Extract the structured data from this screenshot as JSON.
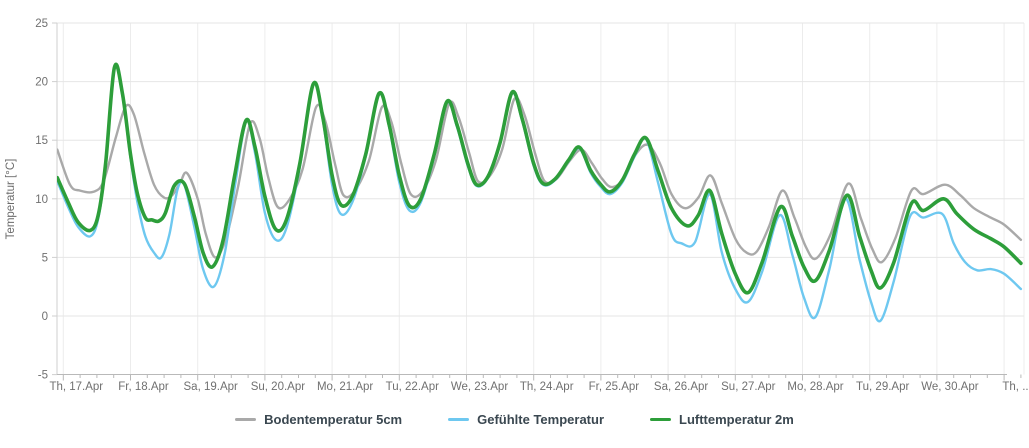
{
  "chart_data": {
    "type": "line",
    "title": "",
    "xlabel": "",
    "ylabel": "Temperatur [°C]",
    "ylim": [
      -5,
      25
    ],
    "y_ticks": [
      25,
      20,
      15,
      10,
      5,
      0,
      -5
    ],
    "x_tick_labels": [
      "Th, 17.Apr",
      "Fr, 18.Apr",
      "Sa, 19.Apr",
      "Su, 20.Apr",
      "Mo, 21.Apr",
      "Tu, 22.Apr",
      "We, 23.Apr",
      "Th, 24.Apr",
      "Fr, 25.Apr",
      "Sa, 26.Apr",
      "Su, 27.Apr",
      "Mo, 28.Apr",
      "Tu, 29.Apr",
      "We, 30.Apr",
      "Th, ..."
    ],
    "x_unit": "days since 17.Apr 00:00",
    "x_minor_ticks_per_day": 3,
    "grid": true,
    "legend_position": "bottom",
    "series": [
      {
        "name": "Bodentemperatur 5cm",
        "id": "bodentemperatur-5cm",
        "color": "#a9a9a9",
        "width": 2.4,
        "points": [
          [
            -0.09,
            14.2
          ],
          [
            0.1,
            11.2
          ],
          [
            0.25,
            10.7
          ],
          [
            0.45,
            10.6
          ],
          [
            0.6,
            11.5
          ],
          [
            0.78,
            15.2
          ],
          [
            0.93,
            17.9
          ],
          [
            1.05,
            17.2
          ],
          [
            1.2,
            14.0
          ],
          [
            1.35,
            11.2
          ],
          [
            1.5,
            10.1
          ],
          [
            1.62,
            10.3
          ],
          [
            1.74,
            11.4
          ],
          [
            1.84,
            12.2
          ],
          [
            2.0,
            10.0
          ],
          [
            2.12,
            7.0
          ],
          [
            2.26,
            5.0
          ],
          [
            2.42,
            6.6
          ],
          [
            2.6,
            11.0
          ],
          [
            2.78,
            16.4
          ],
          [
            2.92,
            15.2
          ],
          [
            3.05,
            11.8
          ],
          [
            3.19,
            9.3
          ],
          [
            3.36,
            9.9
          ],
          [
            3.56,
            12.5
          ],
          [
            3.76,
            17.8
          ],
          [
            3.9,
            16.6
          ],
          [
            4.05,
            12.8
          ],
          [
            4.17,
            10.3
          ],
          [
            4.34,
            10.7
          ],
          [
            4.55,
            13.3
          ],
          [
            4.74,
            17.8
          ],
          [
            4.88,
            16.6
          ],
          [
            5.03,
            13.0
          ],
          [
            5.17,
            10.4
          ],
          [
            5.34,
            10.6
          ],
          [
            5.54,
            13.2
          ],
          [
            5.74,
            18.1
          ],
          [
            5.88,
            17.0
          ],
          [
            6.04,
            13.9
          ],
          [
            6.17,
            11.5
          ],
          [
            6.34,
            11.9
          ],
          [
            6.53,
            14.2
          ],
          [
            6.71,
            18.5
          ],
          [
            6.86,
            17.2
          ],
          [
            7.02,
            13.9
          ],
          [
            7.16,
            11.5
          ],
          [
            7.34,
            11.7
          ],
          [
            7.53,
            13.2
          ],
          [
            7.71,
            14.2
          ],
          [
            7.87,
            13.0
          ],
          [
            8.02,
            11.7
          ],
          [
            8.16,
            11.0
          ],
          [
            8.34,
            11.7
          ],
          [
            8.52,
            13.8
          ],
          [
            8.7,
            14.6
          ],
          [
            8.88,
            13.0
          ],
          [
            9.05,
            10.4
          ],
          [
            9.25,
            9.2
          ],
          [
            9.45,
            10.1
          ],
          [
            9.63,
            12.0
          ],
          [
            9.8,
            9.6
          ],
          [
            10.0,
            6.6
          ],
          [
            10.17,
            5.4
          ],
          [
            10.32,
            5.5
          ],
          [
            10.5,
            7.6
          ],
          [
            10.7,
            10.7
          ],
          [
            10.88,
            8.4
          ],
          [
            11.05,
            5.9
          ],
          [
            11.2,
            4.9
          ],
          [
            11.42,
            7.0
          ],
          [
            11.68,
            11.3
          ],
          [
            11.87,
            8.3
          ],
          [
            12.04,
            5.7
          ],
          [
            12.18,
            4.6
          ],
          [
            12.38,
            6.6
          ],
          [
            12.62,
            10.7
          ],
          [
            12.8,
            10.4
          ],
          [
            13.12,
            11.2
          ],
          [
            13.35,
            10.3
          ],
          [
            13.55,
            9.2
          ],
          [
            13.8,
            8.4
          ],
          [
            14.0,
            7.8
          ],
          [
            14.25,
            6.5
          ]
        ]
      },
      {
        "name": "Gefühlte Temperatur",
        "id": "gefuehlte-temperatur",
        "color": "#6ec8f0",
        "width": 2.4,
        "points": [
          [
            -0.09,
            11.5
          ],
          [
            0.08,
            9.2
          ],
          [
            0.22,
            7.6
          ],
          [
            0.4,
            6.8
          ],
          [
            0.52,
            8.3
          ],
          [
            0.63,
            12.8
          ],
          [
            0.76,
            21.1
          ],
          [
            0.88,
            18.8
          ],
          [
            1.0,
            13.5
          ],
          [
            1.1,
            9.8
          ],
          [
            1.22,
            6.8
          ],
          [
            1.35,
            5.4
          ],
          [
            1.46,
            5.0
          ],
          [
            1.58,
            7.0
          ],
          [
            1.7,
            10.8
          ],
          [
            1.8,
            11.2
          ],
          [
            1.95,
            7.6
          ],
          [
            2.08,
            4.0
          ],
          [
            2.24,
            2.5
          ],
          [
            2.4,
            5.3
          ],
          [
            2.56,
            11.3
          ],
          [
            2.72,
            16.6
          ],
          [
            2.85,
            14.0
          ],
          [
            3.0,
            8.8
          ],
          [
            3.16,
            6.5
          ],
          [
            3.32,
            7.5
          ],
          [
            3.52,
            12.7
          ],
          [
            3.72,
            19.7
          ],
          [
            3.86,
            16.8
          ],
          [
            4.0,
            11.2
          ],
          [
            4.13,
            8.7
          ],
          [
            4.3,
            9.7
          ],
          [
            4.5,
            13.6
          ],
          [
            4.7,
            18.9
          ],
          [
            4.85,
            16.1
          ],
          [
            5.0,
            11.4
          ],
          [
            5.15,
            9.0
          ],
          [
            5.32,
            9.7
          ],
          [
            5.52,
            13.6
          ],
          [
            5.71,
            18.2
          ],
          [
            5.86,
            16.1
          ],
          [
            6.02,
            12.8
          ],
          [
            6.15,
            11.1
          ],
          [
            6.32,
            11.8
          ],
          [
            6.5,
            14.7
          ],
          [
            6.68,
            19.0
          ],
          [
            6.83,
            16.6
          ],
          [
            7.0,
            12.8
          ],
          [
            7.14,
            11.2
          ],
          [
            7.32,
            11.6
          ],
          [
            7.52,
            13.2
          ],
          [
            7.68,
            14.3
          ],
          [
            7.85,
            12.2
          ],
          [
            8.0,
            11.0
          ],
          [
            8.14,
            10.4
          ],
          [
            8.32,
            11.4
          ],
          [
            8.5,
            13.6
          ],
          [
            8.67,
            15.1
          ],
          [
            8.85,
            11.4
          ],
          [
            9.05,
            7.0
          ],
          [
            9.2,
            6.2
          ],
          [
            9.4,
            6.3
          ],
          [
            9.62,
            10.4
          ],
          [
            9.8,
            5.4
          ],
          [
            10.0,
            2.3
          ],
          [
            10.19,
            1.2
          ],
          [
            10.4,
            3.8
          ],
          [
            10.66,
            8.6
          ],
          [
            10.85,
            5.2
          ],
          [
            11.02,
            1.6
          ],
          [
            11.19,
            -0.1
          ],
          [
            11.4,
            4.0
          ],
          [
            11.64,
            10.0
          ],
          [
            11.85,
            4.8
          ],
          [
            12.02,
            1.2
          ],
          [
            12.16,
            -0.4
          ],
          [
            12.36,
            3.0
          ],
          [
            12.6,
            8.5
          ],
          [
            12.8,
            8.4
          ],
          [
            13.08,
            8.7
          ],
          [
            13.25,
            6.2
          ],
          [
            13.42,
            4.6
          ],
          [
            13.6,
            3.9
          ],
          [
            13.8,
            4.0
          ],
          [
            14.0,
            3.6
          ],
          [
            14.25,
            2.3
          ]
        ]
      },
      {
        "name": "Lufttemperatur 2m",
        "id": "lufttemperatur-2m",
        "color": "#2d9e3a",
        "width": 3.6,
        "points": [
          [
            -0.09,
            11.8
          ],
          [
            0.08,
            9.6
          ],
          [
            0.22,
            8.0
          ],
          [
            0.4,
            7.3
          ],
          [
            0.52,
            8.6
          ],
          [
            0.63,
            13.0
          ],
          [
            0.76,
            21.2
          ],
          [
            0.88,
            19.0
          ],
          [
            1.0,
            13.8
          ],
          [
            1.1,
            10.5
          ],
          [
            1.22,
            8.4
          ],
          [
            1.32,
            8.2
          ],
          [
            1.42,
            8.1
          ],
          [
            1.52,
            8.8
          ],
          [
            1.65,
            11.1
          ],
          [
            1.8,
            11.3
          ],
          [
            1.95,
            8.5
          ],
          [
            2.08,
            5.4
          ],
          [
            2.22,
            4.2
          ],
          [
            2.38,
            6.5
          ],
          [
            2.55,
            12.0
          ],
          [
            2.72,
            16.7
          ],
          [
            2.85,
            14.5
          ],
          [
            3.0,
            10.2
          ],
          [
            3.16,
            7.4
          ],
          [
            3.32,
            8.2
          ],
          [
            3.52,
            13.0
          ],
          [
            3.72,
            19.8
          ],
          [
            3.86,
            17.0
          ],
          [
            4.0,
            12.0
          ],
          [
            4.13,
            9.5
          ],
          [
            4.3,
            10.2
          ],
          [
            4.5,
            13.8
          ],
          [
            4.7,
            19.0
          ],
          [
            4.85,
            16.3
          ],
          [
            5.0,
            12.0
          ],
          [
            5.15,
            9.4
          ],
          [
            5.32,
            10.0
          ],
          [
            5.52,
            13.8
          ],
          [
            5.71,
            18.3
          ],
          [
            5.86,
            16.3
          ],
          [
            6.02,
            13.0
          ],
          [
            6.15,
            11.2
          ],
          [
            6.32,
            11.9
          ],
          [
            6.5,
            14.8
          ],
          [
            6.68,
            19.1
          ],
          [
            6.83,
            16.8
          ],
          [
            7.0,
            13.0
          ],
          [
            7.14,
            11.3
          ],
          [
            7.32,
            11.7
          ],
          [
            7.52,
            13.3
          ],
          [
            7.68,
            14.4
          ],
          [
            7.85,
            12.4
          ],
          [
            8.0,
            11.2
          ],
          [
            8.14,
            10.6
          ],
          [
            8.32,
            11.6
          ],
          [
            8.5,
            13.8
          ],
          [
            8.67,
            15.2
          ],
          [
            8.85,
            12.4
          ],
          [
            9.05,
            9.2
          ],
          [
            9.28,
            7.7
          ],
          [
            9.45,
            8.6
          ],
          [
            9.62,
            10.7
          ],
          [
            9.8,
            7.0
          ],
          [
            10.0,
            3.6
          ],
          [
            10.19,
            2.0
          ],
          [
            10.4,
            4.6
          ],
          [
            10.67,
            9.3
          ],
          [
            10.85,
            6.8
          ],
          [
            11.02,
            4.2
          ],
          [
            11.19,
            3.0
          ],
          [
            11.4,
            5.6
          ],
          [
            11.66,
            10.3
          ],
          [
            11.85,
            6.8
          ],
          [
            12.02,
            3.9
          ],
          [
            12.16,
            2.4
          ],
          [
            12.36,
            4.6
          ],
          [
            12.62,
            9.6
          ],
          [
            12.8,
            9.0
          ],
          [
            13.1,
            10.0
          ],
          [
            13.3,
            8.7
          ],
          [
            13.55,
            7.4
          ],
          [
            13.8,
            6.6
          ],
          [
            14.0,
            5.9
          ],
          [
            14.25,
            4.5
          ]
        ]
      }
    ],
    "colors": {
      "grid_horizontal": "#e6e6e6",
      "grid_vertical": "#ececec",
      "axis_line": "#b9b9b9",
      "y_axis_line": "#cfcfcf",
      "tick_text": "#707070",
      "legend_text": "#3a4750",
      "background": "#ffffff"
    }
  }
}
